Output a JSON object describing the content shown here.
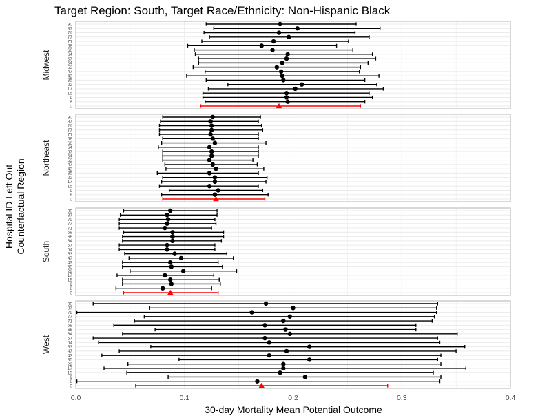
{
  "chart_data": {
    "type": "errorbar",
    "title": "Target Region: South, Target Race/Ethnicity: Non-Hispanic Black",
    "xlabel": "30-day Mortality Mean Potential Outcome",
    "ylabel": [
      "Hospital ID Left Out",
      "Counterfactual Region"
    ],
    "xlim": [
      0.0,
      0.4
    ],
    "xticks": [
      0.0,
      0.1,
      0.2,
      0.3,
      0.4
    ],
    "xtick_labels": [
      "0.0",
      "0.1",
      "0.2",
      "0.3",
      "0.4"
    ],
    "grid": true,
    "categories": [
      "0",
      "8",
      "9",
      "15",
      "17",
      "22",
      "35",
      "43",
      "47",
      "53",
      "54",
      "57",
      "64",
      "66",
      "68",
      "71",
      "77",
      "79",
      "87",
      "90"
    ],
    "baseline_category": "0",
    "colors": {
      "baseline": "#ff0000",
      "points": "#000000",
      "panel_border": "#b3b3b3",
      "grid": "#ebebeb"
    },
    "panels": [
      {
        "facet": "Midwest",
        "estimate": [
          0.187,
          0.195,
          0.194,
          0.194,
          0.202,
          0.208,
          0.191,
          0.19,
          0.189,
          0.185,
          0.19,
          0.194,
          0.195,
          0.181,
          0.171,
          0.182,
          0.196,
          0.187,
          0.204,
          0.188
        ],
        "lower": [
          0.115,
          0.119,
          0.117,
          0.117,
          0.122,
          0.14,
          0.12,
          0.102,
          0.119,
          0.108,
          0.113,
          0.113,
          0.11,
          0.109,
          0.103,
          0.116,
          0.123,
          0.118,
          0.127,
          0.12
        ],
        "upper": [
          0.262,
          0.266,
          0.273,
          0.27,
          0.283,
          0.277,
          0.266,
          0.279,
          0.261,
          0.262,
          0.269,
          0.276,
          0.273,
          0.255,
          0.24,
          0.251,
          0.27,
          0.257,
          0.28,
          0.258
        ]
      },
      {
        "facet": "Northeast",
        "estimate": [
          0.129,
          0.128,
          0.131,
          0.123,
          0.128,
          0.128,
          0.123,
          0.129,
          0.126,
          0.123,
          0.125,
          0.125,
          0.123,
          0.128,
          0.126,
          0.124,
          0.125,
          0.125,
          0.124,
          0.126
        ],
        "lower": [
          0.08,
          0.079,
          0.086,
          0.077,
          0.079,
          0.08,
          0.075,
          0.083,
          0.082,
          0.08,
          0.08,
          0.08,
          0.076,
          0.079,
          0.08,
          0.077,
          0.077,
          0.077,
          0.078,
          0.08
        ],
        "upper": [
          0.174,
          0.177,
          0.172,
          0.168,
          0.175,
          0.176,
          0.168,
          0.173,
          0.167,
          0.163,
          0.168,
          0.168,
          0.168,
          0.175,
          0.168,
          0.168,
          0.172,
          0.171,
          0.168,
          0.17
        ]
      },
      {
        "facet": "South",
        "estimate": [
          0.087,
          0.08,
          0.088,
          0.087,
          0.082,
          0.099,
          0.088,
          0.087,
          0.097,
          0.091,
          0.084,
          0.084,
          0.089,
          0.089,
          0.089,
          0.082,
          0.084,
          0.085,
          0.084,
          0.087
        ],
        "lower": [
          0.044,
          0.037,
          0.043,
          0.043,
          0.038,
          0.05,
          0.043,
          0.043,
          0.049,
          0.045,
          0.04,
          0.04,
          0.043,
          0.043,
          0.044,
          0.04,
          0.04,
          0.04,
          0.041,
          0.044
        ],
        "upper": [
          0.131,
          0.125,
          0.133,
          0.132,
          0.127,
          0.148,
          0.135,
          0.131,
          0.145,
          0.139,
          0.128,
          0.128,
          0.134,
          0.136,
          0.136,
          0.125,
          0.129,
          0.128,
          0.13,
          0.13
        ]
      },
      {
        "facet": "West",
        "estimate": [
          0.171,
          0.167,
          0.211,
          0.188,
          0.191,
          0.191,
          0.215,
          0.178,
          0.194,
          0.215,
          0.178,
          0.174,
          0.197,
          0.193,
          0.174,
          0.191,
          0.197,
          0.162,
          0.2,
          0.175
        ],
        "lower": [
          0.055,
          0.001,
          0.085,
          0.047,
          0.026,
          0.048,
          0.095,
          0.024,
          0.04,
          0.069,
          0.021,
          0.016,
          0.043,
          0.073,
          0.035,
          0.054,
          0.063,
          0.001,
          0.068,
          0.016
        ],
        "upper": [
          0.287,
          0.335,
          0.336,
          0.329,
          0.359,
          0.336,
          0.333,
          0.336,
          0.35,
          0.358,
          0.335,
          0.333,
          0.351,
          0.313,
          0.313,
          0.328,
          0.33,
          0.332,
          0.332,
          0.333
        ]
      }
    ]
  }
}
